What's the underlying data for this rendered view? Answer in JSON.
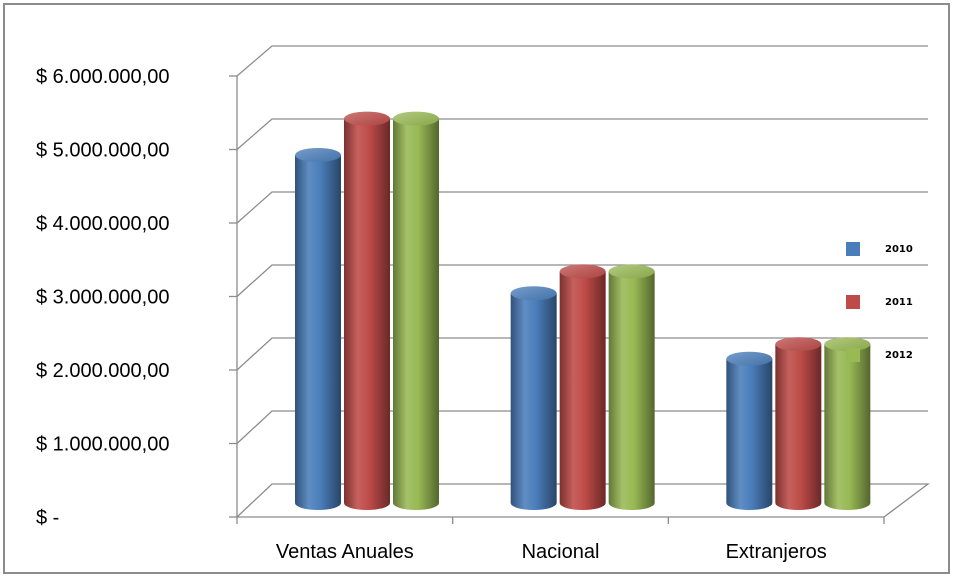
{
  "chart_data": {
    "type": "bar",
    "title": "",
    "xlabel": "",
    "ylabel": "",
    "ylim": [
      0,
      6000000
    ],
    "y_ticks": [
      0,
      1000000,
      2000000,
      3000000,
      4000000,
      5000000,
      6000000
    ],
    "y_tick_labels": [
      "$ -",
      "$ 1.000.000,00",
      "$ 2.000.000,00",
      "$ 3.000.000,00",
      "$ 4.000.000,00",
      "$ 5.000.000,00",
      "$ 6.000.000,00"
    ],
    "categories": [
      "Ventas Anuales",
      "Nacional",
      "Extranjeros"
    ],
    "series": [
      {
        "name": "2010",
        "color": "#4a7ebb",
        "values": [
          4700000,
          2800000,
          1900000
        ]
      },
      {
        "name": "2011",
        "color": "#be4b48",
        "values": [
          5200000,
          3100000,
          2100000
        ]
      },
      {
        "name": "2012",
        "color": "#98b954",
        "values": [
          5200000,
          3100000,
          2100000
        ]
      }
    ],
    "grid": true,
    "legend_position": "right",
    "style": "3d-cylinder"
  }
}
